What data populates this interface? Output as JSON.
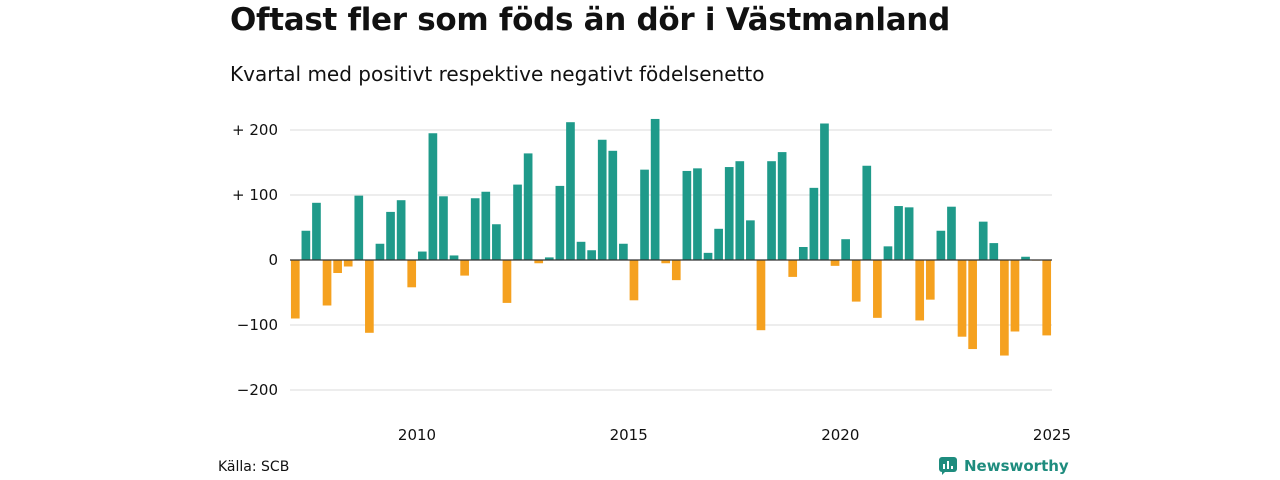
{
  "chart_data": {
    "type": "bar",
    "title": "Oftast fler som föds än dör i Västmanland",
    "subtitle": "Kvartal med positivt respektive negativt födelsenetto",
    "x_ticks": [
      "2010",
      "2015",
      "2020",
      "2025"
    ],
    "y_ticks": [
      "+ 200",
      "+ 100",
      "0",
      "−100",
      "−200"
    ],
    "ylim": [
      -220,
      220
    ],
    "grid": true,
    "colors": {
      "positive": "#1f9a8a",
      "negative": "#f5a11f"
    },
    "series": [
      {
        "values": [
          -90,
          45,
          88,
          -70,
          -20,
          -10,
          99,
          -112,
          25,
          74,
          92,
          -42,
          13,
          195,
          98,
          7,
          -24,
          95,
          105,
          55,
          -66,
          116,
          164,
          -5,
          4,
          114,
          212,
          28,
          15,
          185,
          168,
          25,
          -62,
          139,
          217,
          -5,
          -31,
          137,
          141,
          11,
          48,
          143,
          152,
          61,
          -108,
          152,
          166,
          -26,
          20,
          111,
          210,
          -9,
          32,
          -64,
          145,
          -89,
          21,
          83,
          81,
          -93,
          -61,
          45,
          82,
          -118,
          -137,
          59,
          26,
          -147,
          -110,
          5,
          -1,
          -116
        ]
      }
    ]
  },
  "footer": {
    "source": "Källa: SCB",
    "brand": "Newsworthy",
    "brand_icon": "newsworthy-logo-icon"
  }
}
